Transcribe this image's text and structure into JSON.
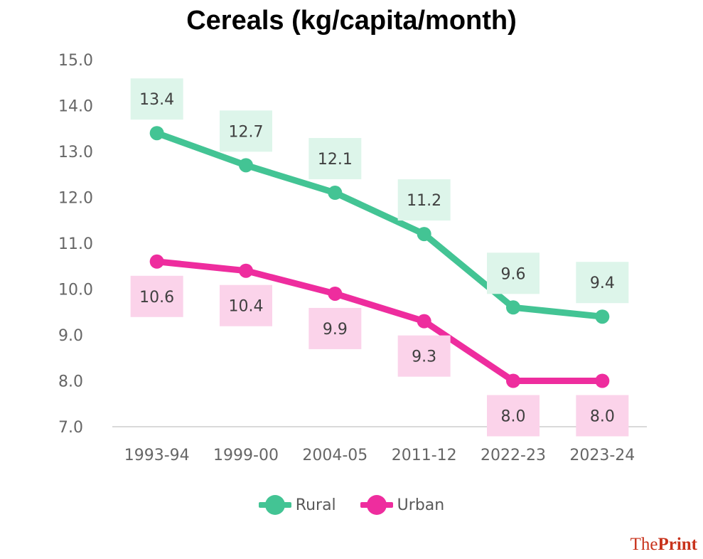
{
  "chart_data": {
    "type": "line",
    "title": "Cereals (kg/capita/month)",
    "xlabel": "",
    "ylabel": "",
    "categories": [
      "1993-94",
      "1999-00",
      "2004-05",
      "2011-12",
      "2022-23",
      "2023-24"
    ],
    "ylim": [
      7.0,
      15.0
    ],
    "yticks": [
      "7.0",
      "8.0",
      "9.0",
      "10.0",
      "11.0",
      "12.0",
      "13.0",
      "14.0",
      "15.0"
    ],
    "grid": false,
    "legend_position": "bottom",
    "series": [
      {
        "name": "Rural",
        "color": "#43C494",
        "label_bg": "#DDF5EA",
        "label_position": "above",
        "values": [
          13.4,
          12.7,
          12.1,
          11.2,
          9.6,
          9.4
        ],
        "labels": [
          "13.4",
          "12.7",
          "12.1",
          "11.2",
          "9.6",
          "9.4"
        ]
      },
      {
        "name": "Urban",
        "color": "#EE2D9E",
        "label_bg": "#FBD3EA",
        "label_position": "below",
        "values": [
          10.6,
          10.4,
          9.9,
          9.3,
          8.0,
          8.0
        ],
        "labels": [
          "10.6",
          "10.4",
          "9.9",
          "9.3",
          "8.0",
          "8.0"
        ]
      }
    ]
  },
  "legend": {
    "items": [
      {
        "label": "Rural",
        "color": "#43C494"
      },
      {
        "label": "Urban",
        "color": "#EE2D9E"
      }
    ]
  },
  "brand": {
    "prefix": "The",
    "bold": "Print"
  }
}
